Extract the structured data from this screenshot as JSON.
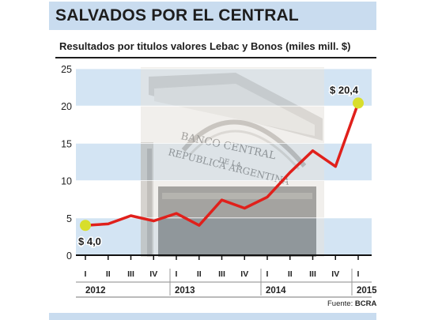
{
  "title": "SALVADOS POR EL CENTRAL",
  "subtitle": "Resultados por titulos valores Lebac y Bonos (miles mill. $)",
  "source": {
    "prefix": "Fuente:",
    "name": "BCRA"
  },
  "photo_caption": [
    "BANCO CENTRAL",
    "DE LA",
    "REPUBLICA ARGENTINA"
  ],
  "colors": {
    "line": "#e0201b",
    "marker": "#d8de2c",
    "band_light": "#d3e4f3",
    "band_white": "#ffffff"
  },
  "chart_data": {
    "type": "line",
    "title": "Resultados por titulos valores Lebac y Bonos (miles mill. $)",
    "ylim": [
      0,
      25
    ],
    "yticks": [
      0,
      5,
      10,
      15,
      20,
      25
    ],
    "quarters": [
      "I",
      "II",
      "III",
      "IV",
      "I",
      "II",
      "III",
      "IV",
      "I",
      "II",
      "III",
      "IV",
      "I"
    ],
    "years": [
      "2012",
      "2013",
      "2014",
      "2015"
    ],
    "years_span": [
      4,
      4,
      4,
      1
    ],
    "values": [
      4.0,
      4.2,
      5.3,
      4.6,
      5.6,
      4.0,
      7.4,
      6.3,
      7.8,
      11.1,
      14.0,
      11.9,
      20.4
    ],
    "annotations": [
      {
        "index": 0,
        "label": "$ 4,0"
      },
      {
        "index": 12,
        "label": "$ 20,4"
      }
    ]
  }
}
